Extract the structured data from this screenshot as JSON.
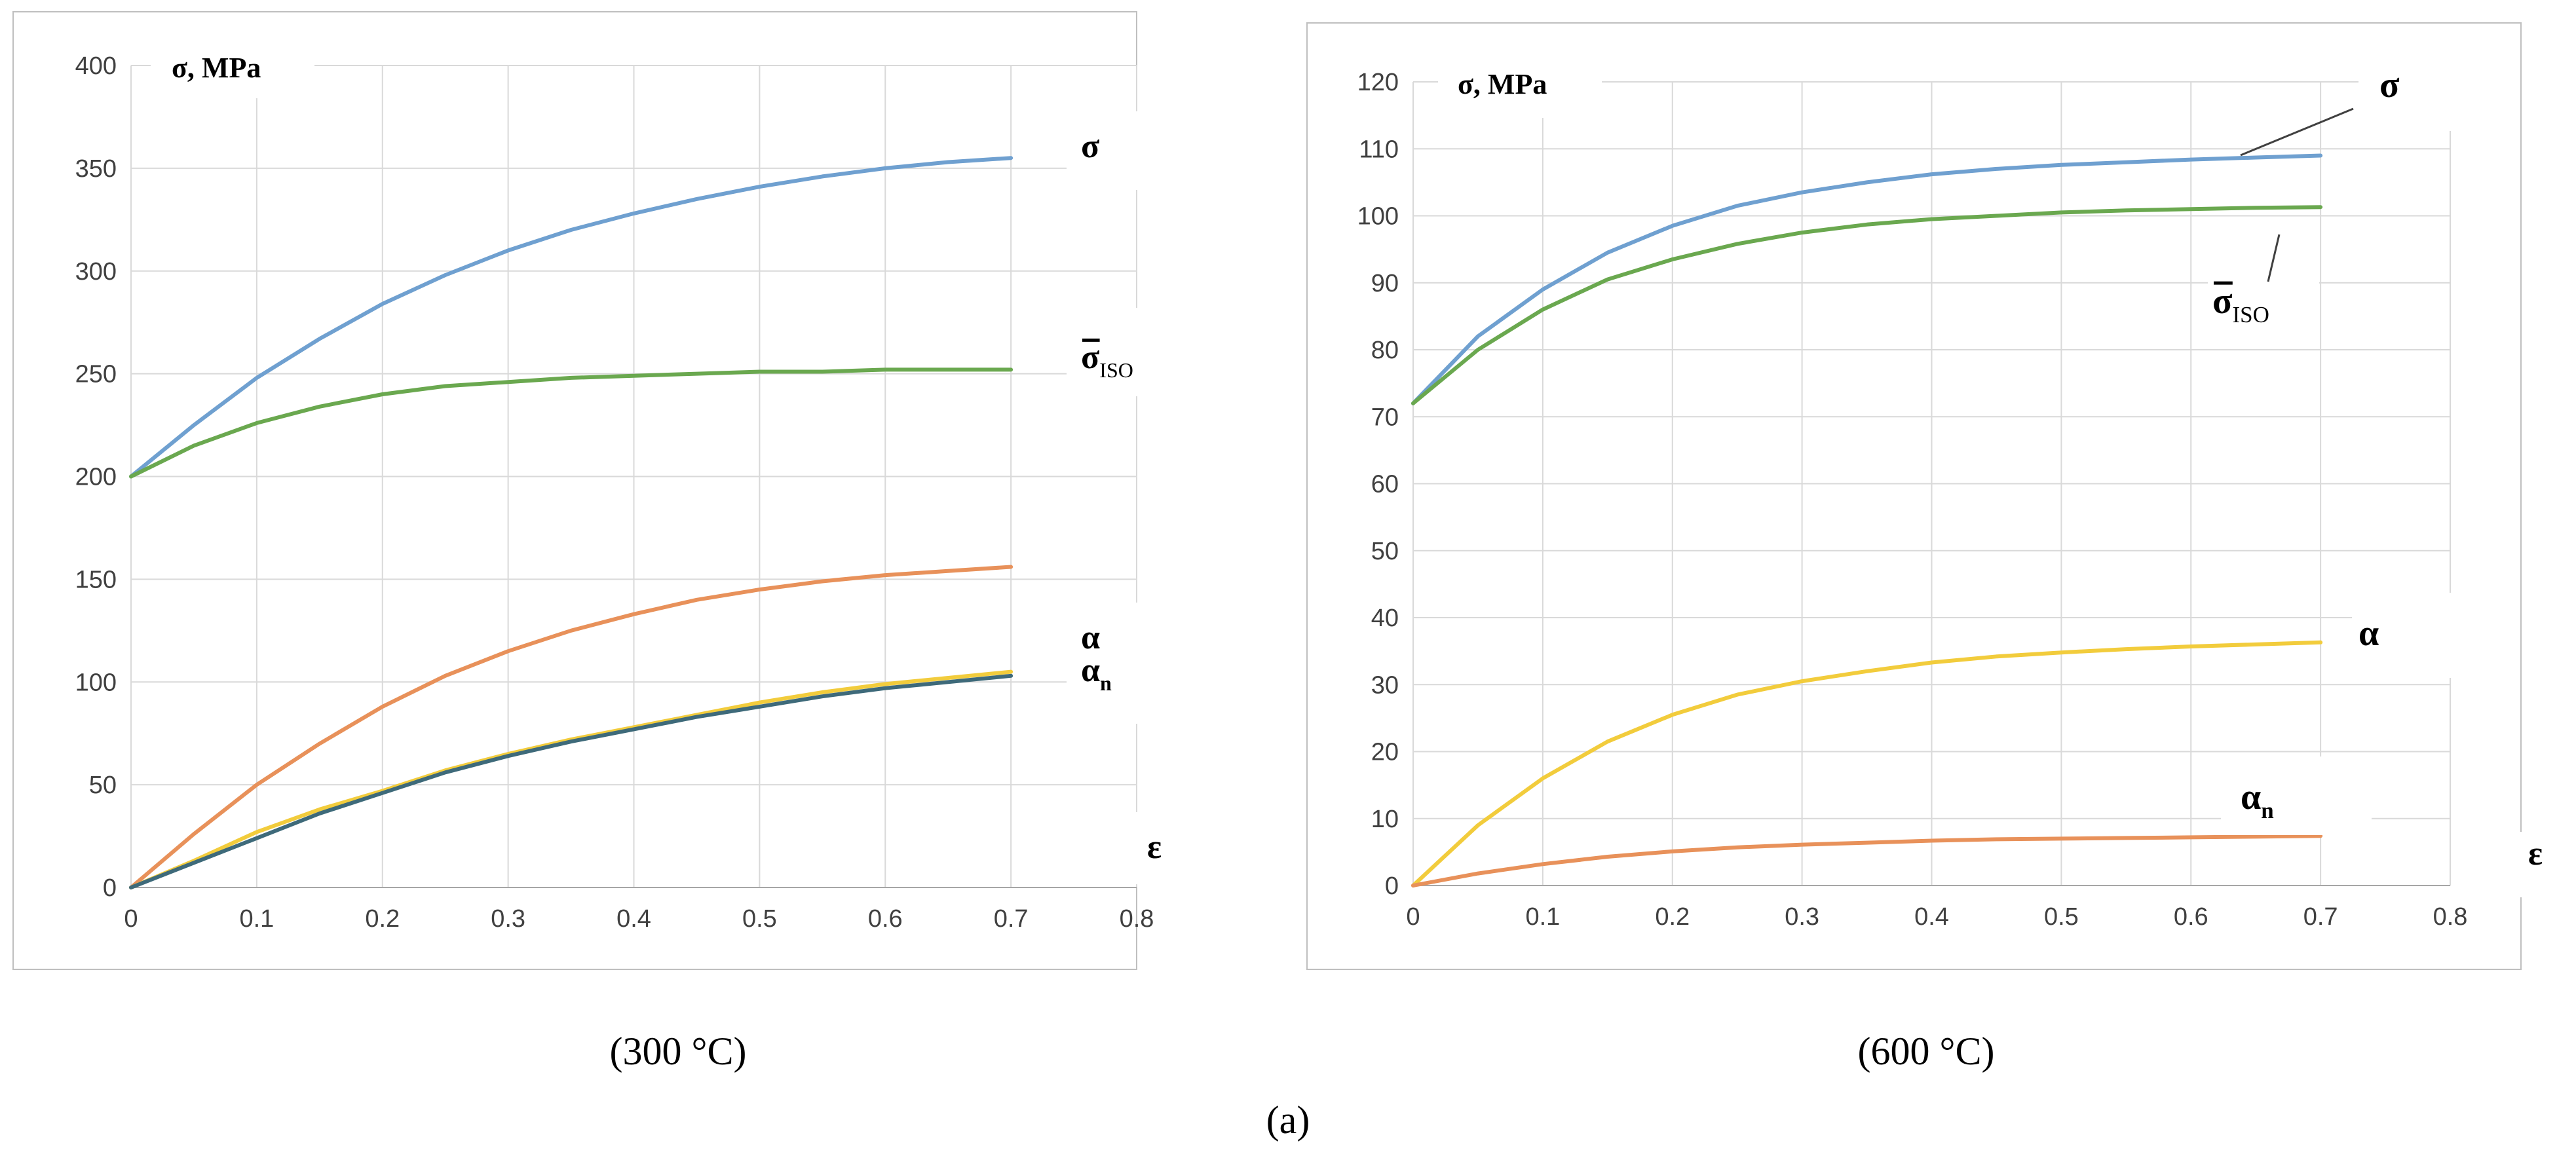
{
  "figure": {
    "caption": "(a)"
  },
  "colors": {
    "blue": "#6FA0D0",
    "green": "#6AA84F",
    "orange": "#E8915A",
    "yellow": "#F2CC3C",
    "dark": "#3E6A7A",
    "grid": "#D9D9D9",
    "frame": "#BFBFBF"
  },
  "chart_data": [
    {
      "type": "line",
      "caption": "(300 °C)",
      "ylabel": "σ, MPa",
      "xlabel": "ε",
      "xlim": [
        0,
        0.8
      ],
      "ylim": [
        0,
        400
      ],
      "xticks": [
        0,
        0.1,
        0.2,
        0.3,
        0.4,
        0.5,
        0.6,
        0.7,
        0.8
      ],
      "xtick_labels": [
        "0",
        "0.1",
        "0.2",
        "0.3",
        "0.4",
        "0.5",
        "0.6",
        "0.7",
        "0.8"
      ],
      "yticks": [
        0,
        50,
        100,
        150,
        200,
        250,
        300,
        350,
        400
      ],
      "ytick_labels": [
        "0",
        "50",
        "100",
        "150",
        "200",
        "250",
        "300",
        "350",
        "400"
      ],
      "x": [
        0,
        0.05,
        0.1,
        0.15,
        0.2,
        0.25,
        0.3,
        0.35,
        0.4,
        0.45,
        0.5,
        0.55,
        0.6,
        0.65,
        0.7
      ],
      "series": [
        {
          "name": "σ",
          "sub": "",
          "bar": false,
          "color": "#6FA0D0",
          "values": [
            200,
            225,
            248,
            267,
            284,
            298,
            310,
            320,
            328,
            335,
            341,
            346,
            350,
            353,
            355
          ]
        },
        {
          "name": "σ",
          "sub": "ISO",
          "bar": true,
          "color": "#6AA84F",
          "values": [
            200,
            215,
            226,
            234,
            240,
            244,
            246,
            248,
            249,
            250,
            251,
            251,
            252,
            252,
            252
          ]
        },
        {
          "name": "α",
          "sub": "",
          "bar": false,
          "color": "#E8915A",
          "values": [
            0,
            26,
            50,
            70,
            88,
            103,
            115,
            125,
            133,
            140,
            145,
            149,
            152,
            154,
            156
          ]
        },
        {
          "name": "α",
          "sub": "n",
          "bar": false,
          "color": "#F2CC3C",
          "values": [
            0,
            13,
            27,
            38,
            47,
            57,
            65,
            72,
            78,
            84,
            90,
            95,
            99,
            102,
            105
          ]
        },
        {
          "name": "α",
          "sub": "n",
          "bar": false,
          "color": "#3E6A7A",
          "values": [
            0,
            12,
            24,
            36,
            46,
            56,
            64,
            71,
            77,
            83,
            88,
            93,
            97,
            100,
            103
          ]
        }
      ]
    },
    {
      "type": "line",
      "caption": "(600 °C)",
      "ylabel": "σ, MPa",
      "xlabel": "ε",
      "xlim": [
        0,
        0.8
      ],
      "ylim": [
        0,
        120
      ],
      "xticks": [
        0,
        0.1,
        0.2,
        0.3,
        0.4,
        0.5,
        0.6,
        0.7,
        0.8
      ],
      "xtick_labels": [
        "0",
        "0.1",
        "0.2",
        "0.3",
        "0.4",
        "0.5",
        "0.6",
        "0.7",
        "0.8"
      ],
      "yticks": [
        0,
        10,
        20,
        30,
        40,
        50,
        60,
        70,
        80,
        90,
        100,
        110,
        120
      ],
      "ytick_labels": [
        "0",
        "10",
        "20",
        "30",
        "40",
        "50",
        "60",
        "70",
        "80",
        "90",
        "100",
        "110",
        "120"
      ],
      "x": [
        0,
        0.05,
        0.1,
        0.15,
        0.2,
        0.25,
        0.3,
        0.35,
        0.4,
        0.45,
        0.5,
        0.55,
        0.6,
        0.65,
        0.7
      ],
      "series": [
        {
          "name": "σ",
          "sub": "",
          "bar": false,
          "color": "#6FA0D0",
          "values": [
            72,
            82,
            89,
            94.5,
            98.5,
            101.5,
            103.5,
            105,
            106.2,
            107,
            107.6,
            108,
            108.4,
            108.7,
            109
          ]
        },
        {
          "name": "σ",
          "sub": "ISO",
          "bar": true,
          "color": "#6AA84F",
          "values": [
            72,
            80,
            86,
            90.5,
            93.5,
            95.8,
            97.5,
            98.7,
            99.5,
            100,
            100.5,
            100.8,
            101,
            101.2,
            101.3
          ]
        },
        {
          "name": "α",
          "sub": "",
          "bar": false,
          "color": "#F2CC3C",
          "values": [
            0,
            9,
            16,
            21.5,
            25.5,
            28.5,
            30.5,
            32,
            33.3,
            34.2,
            34.8,
            35.3,
            35.7,
            36,
            36.3
          ]
        },
        {
          "name": "α",
          "sub": "n",
          "bar": false,
          "color": "#E8915A",
          "values": [
            0,
            1.8,
            3.2,
            4.3,
            5.1,
            5.7,
            6.1,
            6.4,
            6.7,
            6.9,
            7,
            7.1,
            7.2,
            7.3,
            7.4
          ]
        }
      ]
    }
  ]
}
